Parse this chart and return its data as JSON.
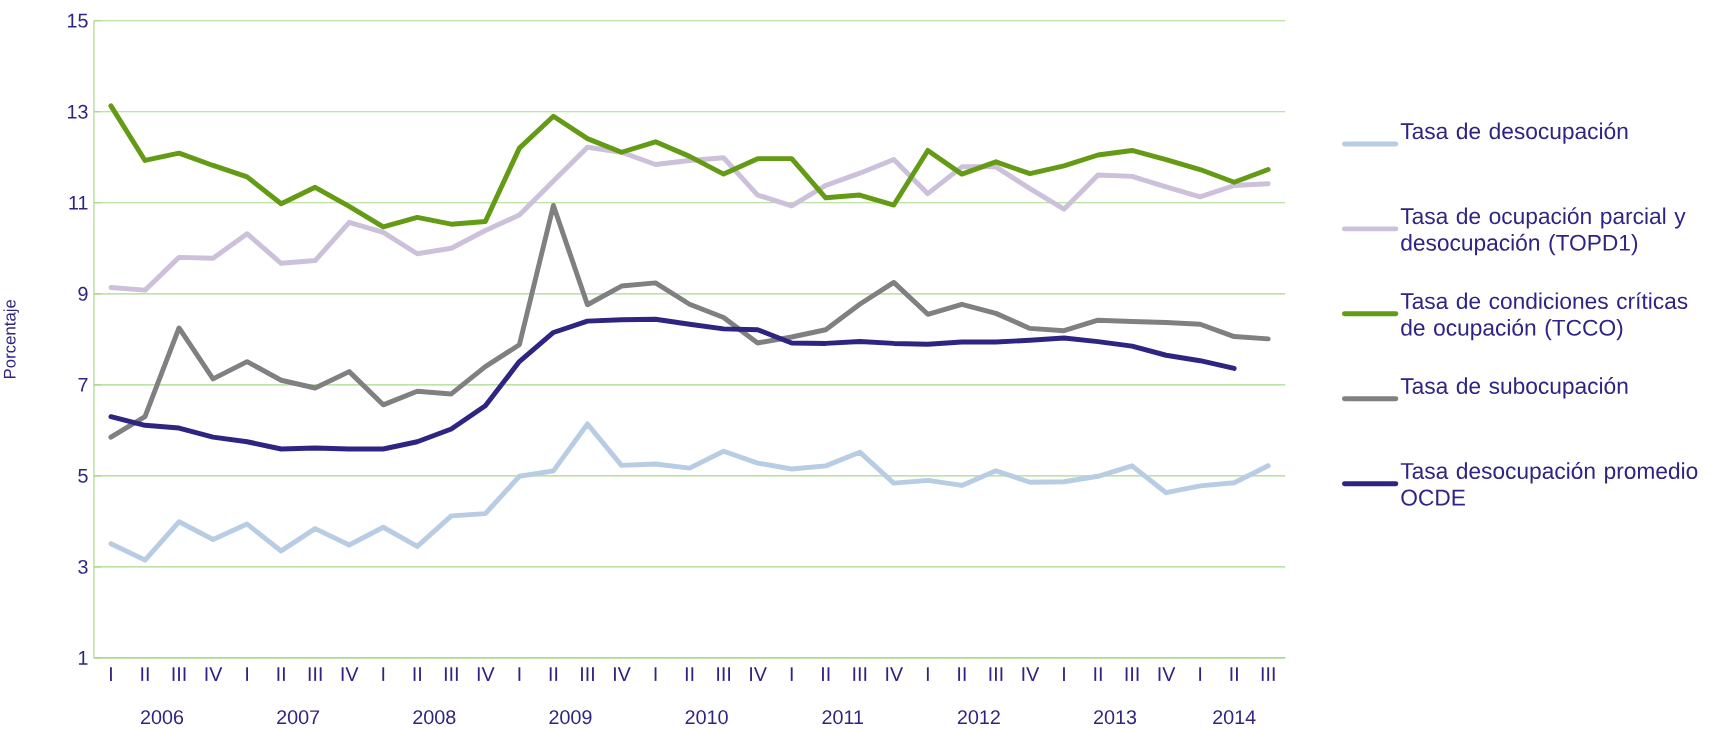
{
  "chart_data": {
    "type": "line",
    "ylabel": "Porcentaje",
    "ylim": [
      1,
      15
    ],
    "yticks": [
      1,
      3,
      5,
      7,
      9,
      11,
      13,
      15
    ],
    "grid": "y",
    "legend": "right",
    "categories": [
      "I",
      "II",
      "III",
      "IV",
      "I",
      "II",
      "III",
      "IV",
      "I",
      "II",
      "III",
      "IV",
      "I",
      "II",
      "III",
      "IV",
      "I",
      "II",
      "III",
      "IV",
      "I",
      "II",
      "III",
      "IV",
      "I",
      "II",
      "III",
      "IV",
      "I",
      "II",
      "III",
      "IV",
      "I",
      "II",
      "III"
    ],
    "annotations": [
      "2006",
      "2007",
      "2008",
      "2009",
      "2010",
      "2011",
      "2012",
      "2013",
      "2014"
    ],
    "series": [
      {
        "name": "Tasa de desocupación",
        "color": "#b8cce4",
        "values": [
          3.51,
          3.15,
          3.99,
          3.6,
          3.94,
          3.35,
          3.84,
          3.48,
          3.87,
          3.45,
          4.12,
          4.17,
          4.99,
          5.11,
          6.14,
          5.23,
          5.26,
          5.17,
          5.54,
          5.28,
          5.15,
          5.22,
          5.52,
          4.84,
          4.9,
          4.79,
          5.11,
          4.86,
          4.87,
          4.99,
          5.22,
          4.63,
          4.78,
          4.85,
          5.22
        ]
      },
      {
        "name": "Tasa de ocupación parcial y desocupación (TOPD1)",
        "color": "#ccc0da",
        "values": [
          9.14,
          9.08,
          9.8,
          9.78,
          10.32,
          9.67,
          9.73,
          10.57,
          10.35,
          9.88,
          10.0,
          10.39,
          10.73,
          11.48,
          12.22,
          12.11,
          11.84,
          11.93,
          11.99,
          11.17,
          10.93,
          11.38,
          11.65,
          11.95,
          11.2,
          11.79,
          11.79,
          11.31,
          10.86,
          11.61,
          11.58,
          11.35,
          11.13,
          11.38,
          11.42
        ]
      },
      {
        "name": "Tasa de condiciones críticas de ocupación (TCCO)",
        "color": "#649b15",
        "values": [
          13.13,
          11.93,
          12.09,
          11.82,
          11.57,
          10.98,
          11.34,
          10.92,
          10.47,
          10.68,
          10.53,
          10.59,
          12.2,
          12.9,
          12.41,
          12.11,
          12.34,
          12.02,
          11.63,
          11.97,
          11.97,
          11.11,
          11.17,
          10.95,
          12.15,
          11.63,
          11.9,
          11.64,
          11.81,
          12.05,
          12.15,
          11.95,
          11.73,
          11.45,
          11.73
        ]
      },
      {
        "name": "Tasa de subocupación",
        "color": "#808080",
        "values": [
          5.85,
          6.3,
          8.25,
          7.13,
          7.51,
          7.1,
          6.93,
          7.29,
          6.56,
          6.86,
          6.8,
          7.4,
          7.88,
          10.94,
          8.76,
          9.17,
          9.24,
          8.77,
          8.48,
          7.92,
          8.05,
          8.21,
          8.77,
          9.25,
          8.55,
          8.77,
          8.57,
          8.24,
          8.19,
          8.42,
          8.39,
          8.37,
          8.33,
          8.06,
          8.01
        ]
      },
      {
        "name": "Tasa desocupación promedio OCDE",
        "color": "#2e2583",
        "values": [
          6.3,
          6.11,
          6.05,
          5.85,
          5.75,
          5.59,
          5.61,
          5.59,
          5.59,
          5.75,
          6.03,
          6.54,
          7.51,
          8.15,
          8.4,
          8.43,
          8.44,
          8.33,
          8.23,
          8.21,
          7.92,
          7.91,
          7.95,
          7.91,
          7.89,
          7.94,
          7.94,
          7.98,
          8.03,
          7.95,
          7.85,
          7.65,
          7.53,
          7.36,
          null
        ]
      }
    ]
  }
}
